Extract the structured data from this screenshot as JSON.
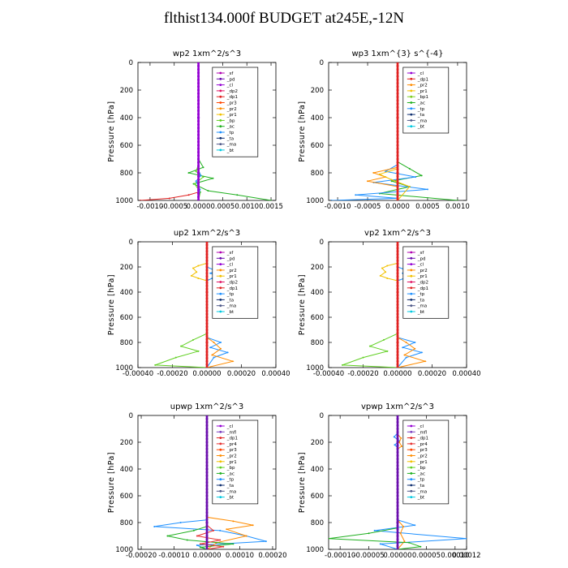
{
  "page_title": "flthist134.000f  BUDGET at245E,-12N",
  "colors": {
    "sf": "#b000b0",
    "pd": "#6a0dad",
    "cl": "#9400d3",
    "mfl": "#7b3fbf",
    "dp2": "#e01060",
    "dp1": "#e02020",
    "pr4": "#e63030",
    "pr3": "#ff4500",
    "pr2": "#ff8c00",
    "pr1": "#f2c100",
    "bp1": "#7ccd1f",
    "bp": "#5fcf20",
    "ac": "#20b020",
    "tp": "#1e90ff",
    "ta": "#103070",
    "ma": "#505a8a",
    "bt": "#00c8e0"
  },
  "chart_data": [
    {
      "type": "line",
      "title": "wp2   1xm^2/s^3",
      "ylabel": "Pressure [hPa]",
      "xlim": [
        -0.00125,
        0.0016
      ],
      "ylim": [
        1000,
        0
      ],
      "x_ticks": [
        "-0.0010",
        "-0.0005",
        "0.0000",
        "0.0005",
        "0.0010",
        "0.0015"
      ],
      "x_tick_values": [
        -0.001,
        -0.0005,
        0,
        0.0005,
        0.001,
        0.0015
      ],
      "y_ticks": [
        "0",
        "200",
        "400",
        "600",
        "800",
        "1000"
      ],
      "y_tick_values": [
        0,
        200,
        400,
        600,
        800,
        1000
      ],
      "legend": [
        "_sf",
        "_pd",
        "_cl",
        "_dp2",
        "_dp1",
        "_pr3",
        "_pr2",
        "_pr1",
        "_bp",
        "_ac",
        "_tp",
        "_ta",
        "_ma",
        "_bt"
      ],
      "legend_colors": [
        "sf",
        "pd",
        "cl",
        "dp2",
        "dp1",
        "pr3",
        "pr2",
        "pr1",
        "bp",
        "ac",
        "tp",
        "ta",
        "ma",
        "bt"
      ],
      "series": [
        {
          "color": "ac",
          "x": [
            0,
            0,
            0.0001,
            -0.0002,
            0.0003,
            -0.0001,
            0.0002,
            0.0008,
            0.0015
          ],
          "y": [
            0,
            700,
            760,
            800,
            840,
            880,
            930,
            960,
            1000
          ]
        },
        {
          "color": "bp",
          "x": [
            0,
            0,
            -5e-05,
            0.0001,
            -8e-05,
            4e-05,
            0
          ],
          "y": [
            0,
            740,
            790,
            830,
            880,
            940,
            1000
          ]
        },
        {
          "color": "dp1",
          "x": [
            0,
            0,
            0,
            -0.0002,
            -0.0006,
            -0.0012
          ],
          "y": [
            0,
            900,
            940,
            960,
            985,
            1000
          ]
        },
        {
          "color": "tp",
          "x": [
            0,
            0,
            5e-05,
            -5e-05,
            3e-05,
            0
          ],
          "y": [
            0,
            780,
            820,
            860,
            920,
            1000
          ]
        },
        {
          "color": "cl",
          "x": [
            0,
            0,
            0,
            0
          ],
          "y": [
            0,
            400,
            800,
            1000
          ]
        }
      ]
    },
    {
      "type": "line",
      "title": "wp3   1xm^{3} s^{-4}",
      "ylabel": "Pressure [hPa]",
      "xlim": [
        -0.00115,
        0.00115
      ],
      "ylim": [
        1000,
        0
      ],
      "x_ticks": [
        "-0.0010",
        "-0.0005",
        "0.0000",
        "0.0005",
        "0.0010"
      ],
      "x_tick_values": [
        -0.001,
        -0.0005,
        0,
        0.0005,
        0.001
      ],
      "y_ticks": [
        "0",
        "200",
        "400",
        "600",
        "800",
        "1000"
      ],
      "y_tick_values": [
        0,
        200,
        400,
        600,
        800,
        1000
      ],
      "legend": [
        "_cl",
        "_dp1",
        "_pr2",
        "_pr1",
        "_bp1",
        "_ac",
        "_tp",
        "_ta",
        "_ma",
        "_bt"
      ],
      "legend_colors": [
        "cl",
        "dp1",
        "pr2",
        "pr1",
        "bp1",
        "ac",
        "tp",
        "ta",
        "ma",
        "bt"
      ],
      "series": [
        {
          "color": "ac",
          "x": [
            0,
            0,
            0.0002,
            0.0004,
            -0.0001,
            0.0002,
            -0.0003,
            0.001
          ],
          "y": [
            0,
            720,
            770,
            820,
            860,
            900,
            950,
            1000
          ]
        },
        {
          "color": "tp",
          "x": [
            0,
            0,
            -0.0002,
            0.0003,
            -0.0004,
            0.0005,
            -0.0007,
            0,
            -0.0011
          ],
          "y": [
            0,
            740,
            790,
            830,
            870,
            920,
            960,
            985,
            1000
          ]
        },
        {
          "color": "pr2",
          "x": [
            0,
            0,
            -0.0004,
            -0.0002,
            -0.0005,
            0,
            0
          ],
          "y": [
            0,
            760,
            800,
            830,
            860,
            900,
            1000
          ]
        },
        {
          "color": "pr1",
          "x": [
            0,
            0,
            -0.0003,
            -0.0001,
            0.0002,
            0
          ],
          "y": [
            0,
            770,
            810,
            850,
            900,
            1000
          ]
        },
        {
          "color": "dp1",
          "x": [
            0,
            0,
            0,
            0
          ],
          "y": [
            0,
            400,
            800,
            1000
          ]
        }
      ]
    },
    {
      "type": "line",
      "title": "up2   1xm^2/s^3",
      "ylabel": "Pressure [hPa]",
      "xlim": [
        -0.0004,
        0.0004
      ],
      "ylim": [
        1000,
        0
      ],
      "x_ticks": [
        "-0.00040",
        "-0.00020",
        "0.00000",
        "0.00020",
        "0.00040"
      ],
      "x_tick_values": [
        -0.0004,
        -0.0002,
        0,
        0.0002,
        0.0004
      ],
      "y_ticks": [
        "0",
        "200",
        "400",
        "600",
        "800",
        "1000"
      ],
      "y_tick_values": [
        0,
        200,
        400,
        600,
        800,
        1000
      ],
      "legend": [
        "_sf",
        "_pd",
        "_cl",
        "_pr2",
        "_pr1",
        "_dp2",
        "_dp1",
        "_tp",
        "_ta",
        "_ma",
        "_bt"
      ],
      "legend_colors": [
        "sf",
        "pd",
        "cl",
        "pr2",
        "pr1",
        "dp2",
        "dp1",
        "tp",
        "ta",
        "ma",
        "bt"
      ],
      "series": [
        {
          "color": "pr1",
          "x": [
            0,
            0,
            -5e-05,
            -8e-05,
            -6e-05,
            -9e-05,
            -5e-05,
            0,
            0
          ],
          "y": [
            0,
            170,
            190,
            210,
            240,
            270,
            290,
            310,
            1000
          ]
        },
        {
          "color": "tp",
          "x": [
            0,
            0,
            5e-05,
            2e-05,
            6e-05,
            3e-05,
            0,
            0,
            8e-05,
            2e-05,
            0.00012,
            4e-05,
            0
          ],
          "y": [
            0,
            200,
            230,
            250,
            270,
            290,
            310,
            760,
            800,
            840,
            880,
            920,
            1000
          ]
        },
        {
          "color": "bp",
          "x": [
            0,
            0,
            -8e-05,
            -0.00015,
            -5e-05,
            -0.00018,
            -0.0003,
            0
          ],
          "y": [
            0,
            730,
            780,
            830,
            870,
            920,
            980,
            1000
          ]
        },
        {
          "color": "pr2",
          "x": [
            0,
            0,
            4e-05,
            8e-05,
            3e-05,
            0.00015,
            0
          ],
          "y": [
            0,
            760,
            800,
            850,
            900,
            950,
            1000
          ]
        },
        {
          "color": "dp1",
          "x": [
            0,
            0,
            0,
            0
          ],
          "y": [
            0,
            400,
            800,
            1000
          ]
        }
      ]
    },
    {
      "type": "line",
      "title": "vp2   1xm^2/s^3",
      "ylabel": "Pressure [hPa]",
      "xlim": [
        -0.0004,
        0.0004
      ],
      "ylim": [
        1000,
        0
      ],
      "x_ticks": [
        "-0.00040",
        "-0.00020",
        "0.00000",
        "0.00020",
        "0.00040"
      ],
      "x_tick_values": [
        -0.0004,
        -0.0002,
        0,
        0.0002,
        0.0004
      ],
      "y_ticks": [
        "0",
        "200",
        "400",
        "600",
        "800",
        "1000"
      ],
      "y_tick_values": [
        0,
        200,
        400,
        600,
        800,
        1000
      ],
      "legend": [
        "_sf",
        "_pd",
        "_cl",
        "_pr2",
        "_pr1",
        "_dp2",
        "_dp1",
        "_tp",
        "_ta",
        "_ma",
        "_bt"
      ],
      "legend_colors": [
        "sf",
        "pd",
        "cl",
        "pr2",
        "pr1",
        "dp2",
        "dp1",
        "tp",
        "ta",
        "ma",
        "bt"
      ],
      "series": [
        {
          "color": "pr1",
          "x": [
            0,
            0,
            -6e-05,
            -9e-05,
            -7e-05,
            -0.0001,
            -6e-05,
            0,
            0
          ],
          "y": [
            0,
            170,
            190,
            210,
            240,
            270,
            290,
            310,
            1000
          ]
        },
        {
          "color": "tp",
          "x": [
            0,
            0,
            6e-05,
            3e-05,
            8e-05,
            4e-05,
            0,
            0,
            0.0001,
            3e-05,
            0.00014,
            5e-05,
            0
          ],
          "y": [
            0,
            200,
            230,
            250,
            270,
            290,
            310,
            760,
            800,
            840,
            880,
            920,
            1000
          ]
        },
        {
          "color": "bp",
          "x": [
            0,
            0,
            -8e-05,
            -0.00016,
            -6e-05,
            -0.0002,
            -0.00032,
            0
          ],
          "y": [
            0,
            730,
            780,
            830,
            870,
            920,
            980,
            1000
          ]
        },
        {
          "color": "pr2",
          "x": [
            0,
            0,
            5e-05,
            0.0001,
            4e-05,
            0.00016,
            0
          ],
          "y": [
            0,
            760,
            800,
            850,
            900,
            950,
            1000
          ]
        },
        {
          "color": "dp1",
          "x": [
            0,
            0,
            0,
            0
          ],
          "y": [
            0,
            400,
            800,
            1000
          ]
        }
      ]
    },
    {
      "type": "line",
      "title": "upwp   1xm^2/s^3",
      "ylabel": "Pressure [hPa]",
      "xlim": [
        -0.00021,
        0.00021
      ],
      "ylim": [
        1000,
        0
      ],
      "x_ticks": [
        "-0.00020",
        "-0.00010",
        "0.00000",
        "0.00010",
        "0.00020"
      ],
      "x_tick_values": [
        -0.0002,
        -0.0001,
        0,
        0.0001,
        0.0002
      ],
      "y_ticks": [
        "0",
        "200",
        "400",
        "600",
        "800",
        "1000"
      ],
      "y_tick_values": [
        0,
        200,
        400,
        600,
        800,
        1000
      ],
      "legend": [
        "_cl",
        "_mfl",
        "_dp1",
        "_pr4",
        "_pr3",
        "_pr2",
        "_pr1",
        "_bp",
        "_ac",
        "_tp",
        "_ta",
        "_ma",
        "_bt"
      ],
      "legend_colors": [
        "cl",
        "mfl",
        "dp1",
        "pr4",
        "pr3",
        "pr2",
        "pr1",
        "bp",
        "ac",
        "tp",
        "ta",
        "ma",
        "bt"
      ],
      "series": [
        {
          "color": "tp",
          "x": [
            0,
            0,
            -8e-05,
            -0.00016,
            4e-05,
            0.00012,
            0.00018,
            -3e-05,
            0
          ],
          "y": [
            0,
            780,
            800,
            830,
            860,
            900,
            940,
            970,
            1000
          ]
        },
        {
          "color": "pr2",
          "x": [
            0,
            0,
            8e-05,
            0.00014,
            6e-05,
            0.00012,
            3e-05,
            0
          ],
          "y": [
            0,
            760,
            790,
            820,
            850,
            900,
            950,
            1000
          ]
        },
        {
          "color": "ac",
          "x": [
            0,
            0,
            -4e-05,
            -0.00012,
            -6e-05,
            8e-05,
            -2e-05,
            0
          ],
          "y": [
            0,
            830,
            860,
            900,
            930,
            960,
            985,
            1000
          ]
        },
        {
          "color": "pr4",
          "x": [
            0,
            0,
            2e-05,
            -3e-05,
            4e-05,
            -2e-05,
            5e-05,
            0
          ],
          "y": [
            0,
            820,
            860,
            900,
            930,
            960,
            980,
            1000
          ]
        },
        {
          "color": "pd",
          "x": [
            0,
            0,
            0,
            0
          ],
          "y": [
            0,
            400,
            800,
            1000
          ]
        }
      ]
    },
    {
      "type": "line",
      "title": "vpwp   1xm^2/s^3",
      "ylabel": "Pressure [hPa]",
      "xlim": [
        -0.00012,
        0.00012
      ],
      "ylim": [
        1000,
        0
      ],
      "x_ticks": [
        "-0.00010",
        "-0.00005",
        "0.00000",
        "0.00005",
        "0.00010",
        "0.00012"
      ],
      "x_tick_values": [
        -0.0001,
        -5e-05,
        0,
        5e-05,
        0.0001,
        0.00012
      ],
      "y_ticks": [
        "0",
        "200",
        "400",
        "600",
        "800",
        "1000"
      ],
      "y_tick_values": [
        0,
        200,
        400,
        600,
        800,
        1000
      ],
      "legend": [
        "_cl",
        "_mfl",
        "_dp1",
        "_pr4",
        "_pr3",
        "_pr2",
        "_pr1",
        "_bp",
        "_ac",
        "_tp",
        "_ta",
        "_ma",
        "_bt"
      ],
      "legend_colors": [
        "cl",
        "mfl",
        "dp1",
        "pr4",
        "pr3",
        "pr2",
        "pr1",
        "bp",
        "ac",
        "tp",
        "ta",
        "ma",
        "bt"
      ],
      "series": [
        {
          "color": "tp",
          "x": [
            0,
            0,
            -6e-06,
            3e-06,
            -5e-06,
            0,
            0,
            3e-05,
            -4e-05,
            0.00012,
            -3e-05,
            0
          ],
          "y": [
            0,
            130,
            160,
            190,
            220,
            240,
            780,
            820,
            860,
            920,
            960,
            1000
          ]
        },
        {
          "color": "pr2",
          "x": [
            0,
            0,
            6e-06,
            3e-06,
            7e-06,
            0,
            0,
            1e-05,
            5e-06,
            1.2e-05,
            0
          ],
          "y": [
            0,
            140,
            170,
            200,
            230,
            250,
            780,
            830,
            880,
            940,
            1000
          ]
        },
        {
          "color": "ac",
          "x": [
            0,
            0,
            -5e-05,
            -0.00012,
            2e-05,
            4e-05,
            0
          ],
          "y": [
            0,
            840,
            880,
            920,
            950,
            980,
            1000
          ]
        },
        {
          "color": "pd",
          "x": [
            0,
            0,
            0,
            0
          ],
          "y": [
            0,
            400,
            800,
            1000
          ]
        }
      ]
    }
  ]
}
